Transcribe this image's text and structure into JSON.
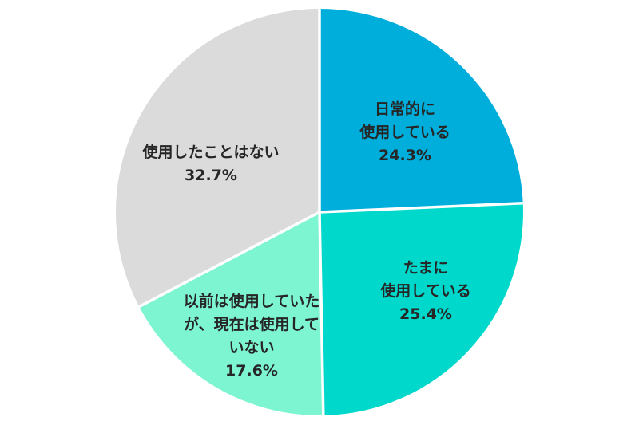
{
  "chart_data": {
    "type": "pie",
    "unit": "%",
    "categories": [
      "日常的に使用している",
      "たまに使用している",
      "以前は使用していたが、現在は使用していない",
      "使用したことはない"
    ],
    "values": [
      24.3,
      25.4,
      17.6,
      32.7
    ],
    "layout": {
      "start_angle": "top",
      "direction": "clockwise",
      "labels": "inside",
      "legend": "none",
      "grid": "off"
    },
    "divider_color": "#FFFFFF",
    "background_color": "#FFFFFF",
    "label_text_color": "#262626",
    "slices": [
      {
        "id": "daily",
        "label": "日常的に使用している",
        "label_lines": [
          "日常的に",
          "使用している"
        ],
        "value": 24.3,
        "pct_label": "24.3%",
        "color": "#00AEDB"
      },
      {
        "id": "sometimes",
        "label": "たまに使用している",
        "label_lines": [
          "たまに",
          "使用している"
        ],
        "value": 25.4,
        "pct_label": "25.4%",
        "color": "#00D8CC"
      },
      {
        "id": "used-before",
        "label": "以前は使用していたが、現在は使用していない",
        "label_lines": [
          "以前は使用していた",
          "が、現在は使用して",
          "いない"
        ],
        "value": 17.6,
        "pct_label": "17.6%",
        "color": "#7EF5D1"
      },
      {
        "id": "never",
        "label": "使用したことはない",
        "label_lines": [
          "使用したことはない"
        ],
        "value": 32.7,
        "pct_label": "32.7%",
        "color": "#DBDBDB"
      }
    ]
  }
}
